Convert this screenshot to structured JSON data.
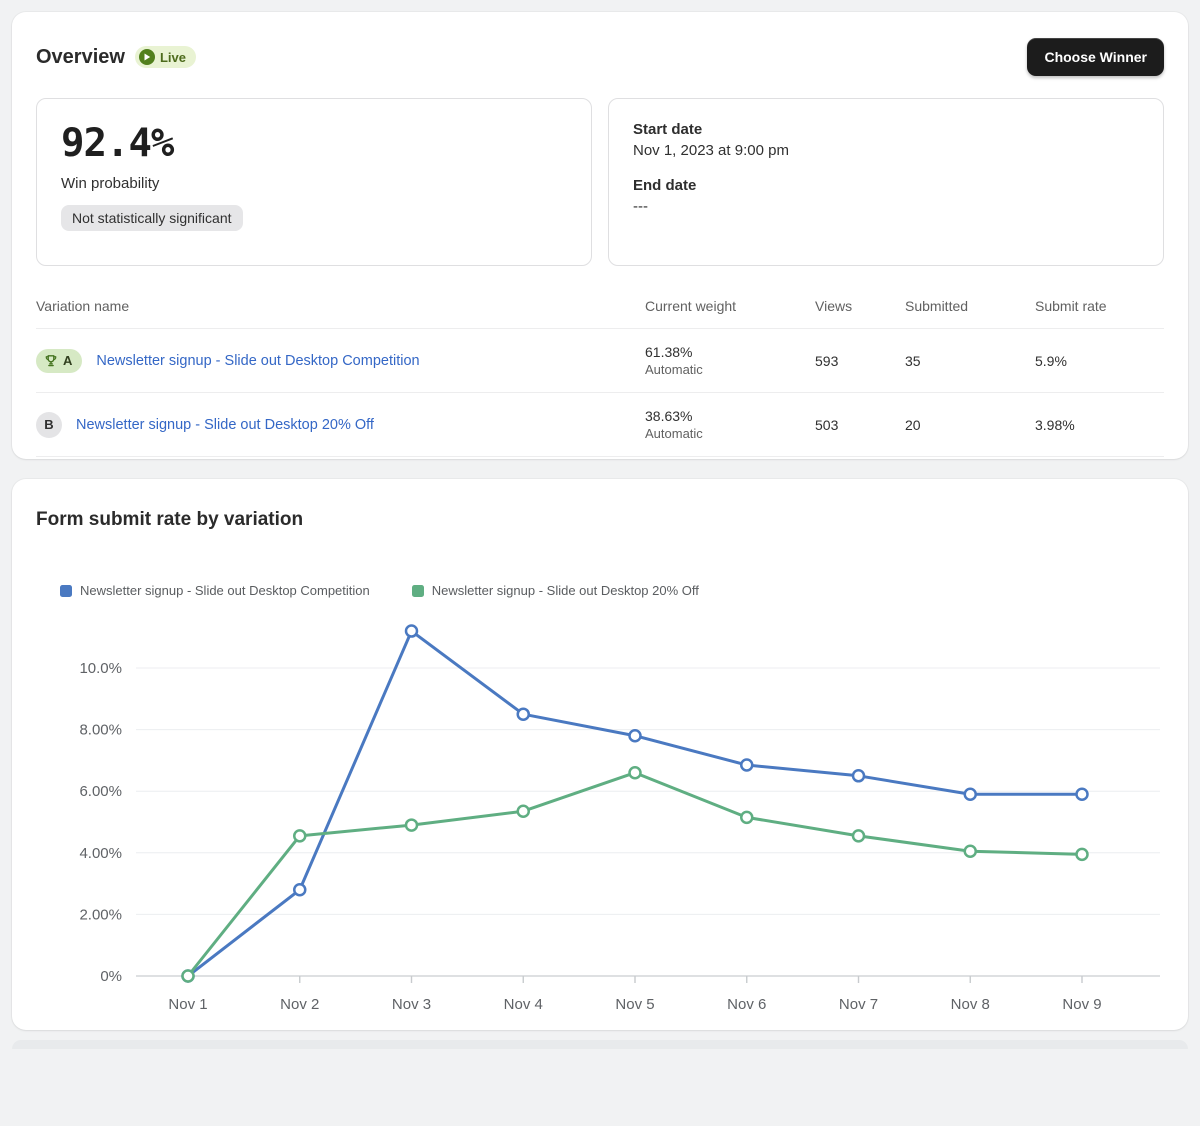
{
  "overview": {
    "title": "Overview",
    "live_label": "Live",
    "choose_winner_label": "Choose Winner",
    "win_probability": {
      "value": "92.4%",
      "label": "Win probability",
      "significance": "Not statistically significant"
    },
    "dates": {
      "start_label": "Start date",
      "start_value": "Nov 1, 2023 at 9:00 pm",
      "end_label": "End date",
      "end_value": "---"
    }
  },
  "table": {
    "columns": [
      "Variation name",
      "Current weight",
      "Views",
      "Submitted",
      "Submit rate"
    ],
    "rows": [
      {
        "badge": "A",
        "winner": true,
        "name": "Newsletter signup - Slide out Desktop Competition",
        "weight": "61.38%",
        "weight_mode": "Automatic",
        "views": "593",
        "submitted": "35",
        "submit_rate": "5.9%"
      },
      {
        "badge": "B",
        "winner": false,
        "name": "Newsletter signup - Slide out Desktop 20% Off",
        "weight": "38.63%",
        "weight_mode": "Automatic",
        "views": "503",
        "submitted": "20",
        "submit_rate": "3.98%"
      }
    ]
  },
  "chart_data": {
    "type": "line",
    "title": "Form submit rate by variation",
    "x": [
      "Nov 1",
      "Nov 2",
      "Nov 3",
      "Nov 4",
      "Nov 5",
      "Nov 6",
      "Nov 7",
      "Nov 8",
      "Nov 9"
    ],
    "series": [
      {
        "name": "Newsletter signup - Slide out Desktop Competition",
        "color": "#4a79c1",
        "values": [
          0,
          2.8,
          11.2,
          8.5,
          7.8,
          6.85,
          6.5,
          5.9,
          5.9
        ]
      },
      {
        "name": "Newsletter signup - Slide out Desktop 20% Off",
        "color": "#5fae82",
        "values": [
          0,
          4.55,
          4.9,
          5.35,
          6.6,
          5.15,
          4.55,
          4.05,
          3.95
        ]
      }
    ],
    "ylabel_ticks": [
      "0%",
      "2.00%",
      "4.00%",
      "6.00%",
      "8.00%",
      "10.0%"
    ],
    "ytick_values": [
      0,
      2,
      4,
      6,
      8,
      10
    ],
    "ymax": 11.9,
    "grid": true,
    "legend_position": "top-left",
    "marker": "open-circle"
  },
  "colors": {
    "accent_blue": "#4a79c1",
    "accent_green": "#5fae82",
    "link": "#3467c6",
    "live_badge_bg": "#e9f3d3",
    "live_badge_dot": "#52801d",
    "winner_badge_bg": "#d6e9c4",
    "button_bg": "#1c1c1c"
  }
}
